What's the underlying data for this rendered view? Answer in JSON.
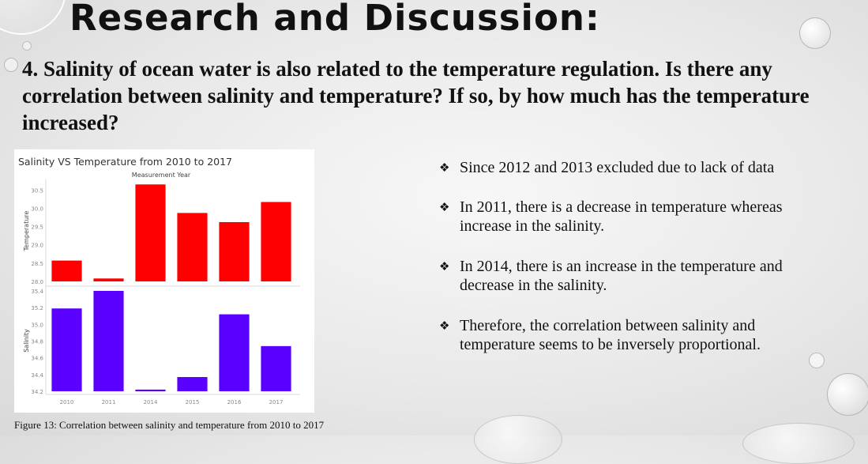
{
  "slide": {
    "title": "Research and Discussion:",
    "question": "4. Salinity of ocean water is also related to the temperature regulation. Is there any correlation between salinity and temperature? If so, by how much has the temperature increased?",
    "bullet_icon": "diamond-four-petal-icon",
    "bullets": [
      "Since 2012 and 2013 excluded due to lack of data",
      "In 2011, there is a decrease in temperature whereas increase in the salinity.",
      "In 2014, there is an increase in the temperature and decrease in the salinity.",
      "Therefore, the correlation between salinity and temperature seems to be inversely proportional."
    ],
    "caption": "Figure 13: Correlation between salinity and temperature from 2010 to 2017"
  },
  "chart_data": {
    "type": "bar",
    "title": "Salinity VS Temperature from 2010 to 2017",
    "xlabel": "Measurement Year",
    "categories": [
      "2010",
      "2011",
      "2014",
      "2015",
      "2016",
      "2017"
    ],
    "panels": [
      {
        "name": "Temperature",
        "ylabel": "Temperature",
        "color": "#ff0000",
        "ylim": [
          28.0,
          30.7
        ],
        "ticks": [
          "30.5",
          "30.0",
          "29.5",
          "29.0",
          "28.5",
          "28.0"
        ],
        "values": [
          28.57,
          28.08,
          30.65,
          29.87,
          29.62,
          30.17
        ]
      },
      {
        "name": "Salinity",
        "ylabel": "Salinity",
        "color": "#5a00ff",
        "ylim": [
          34.2,
          35.4
        ],
        "ticks": [
          "35.4",
          "35.2",
          "35.0",
          "34.8",
          "34.6",
          "34.4",
          "34.2"
        ],
        "values": [
          35.19,
          35.4,
          34.22,
          34.37,
          35.12,
          34.74
        ]
      }
    ],
    "grid": false,
    "legend": "none"
  }
}
